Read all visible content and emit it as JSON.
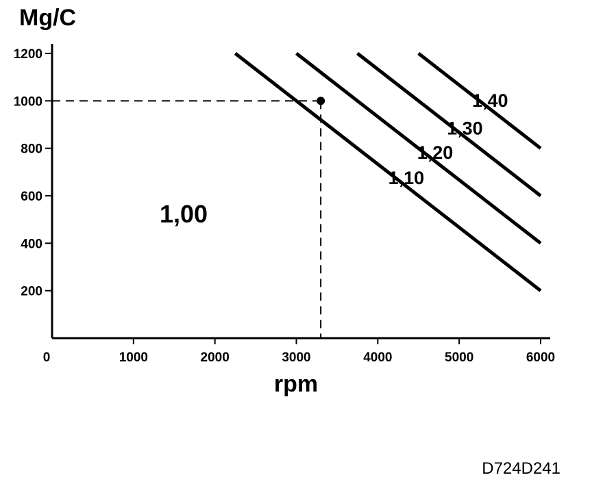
{
  "chart_data": {
    "type": "line",
    "ylabel": "Mg/C",
    "xlabel": "rpm",
    "xlim": [
      0,
      6000
    ],
    "ylim": [
      0,
      1200
    ],
    "x_ticks": [
      "0",
      "1000",
      "2000",
      "3000",
      "4000",
      "5000",
      "6000"
    ],
    "y_ticks": [
      "200",
      "400",
      "600",
      "800",
      "1000",
      "1200"
    ],
    "grid": false,
    "series": [
      {
        "name": "1,10",
        "points": [
          [
            2250,
            1200
          ],
          [
            6000,
            200
          ]
        ]
      },
      {
        "name": "1,20",
        "points": [
          [
            3000,
            1200
          ],
          [
            6000,
            400
          ]
        ]
      },
      {
        "name": "1,30",
        "points": [
          [
            3750,
            1200
          ],
          [
            6000,
            600
          ]
        ]
      },
      {
        "name": "1,40",
        "points": [
          [
            4500,
            1200
          ],
          [
            6000,
            800
          ]
        ]
      }
    ],
    "region_label": "1,00",
    "reference_point": {
      "x": 3300,
      "y": 1000
    }
  },
  "figure_id": "D724D241"
}
